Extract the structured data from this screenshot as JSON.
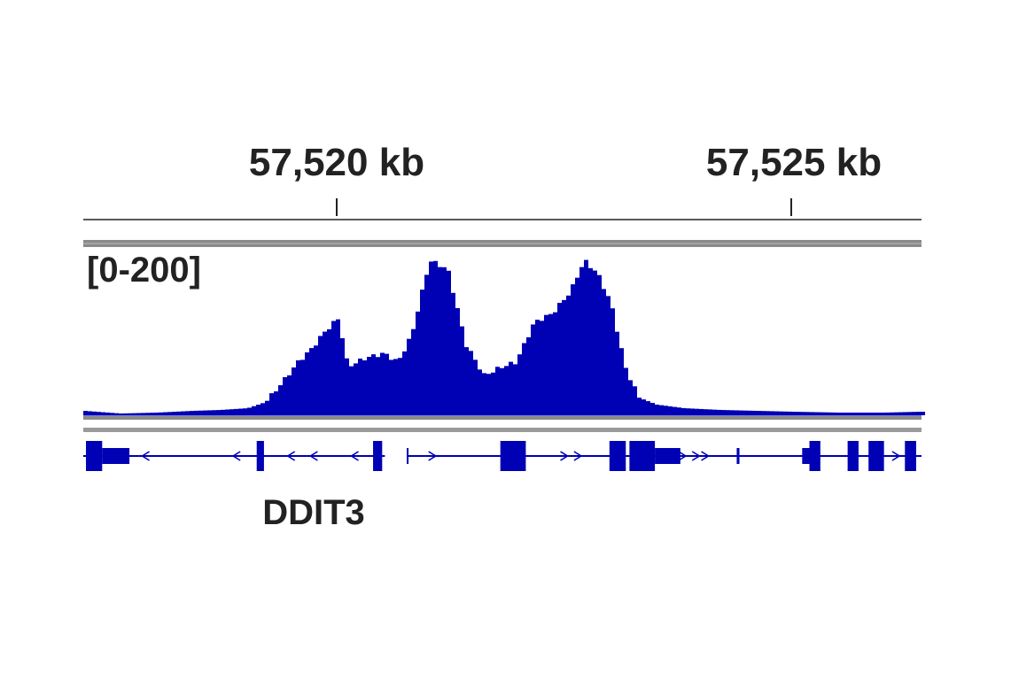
{
  "ruler": {
    "ticks": [
      {
        "label": "57,520 kb",
        "position_kb": 57520
      },
      {
        "label": "57,525 kb",
        "position_kb": 57525
      }
    ]
  },
  "track": {
    "range_label": "[0-200]"
  },
  "gene": {
    "name": "DDIT3"
  },
  "colors": {
    "signal": "#0000b4",
    "gene": "#0000b4",
    "ruler": "#222222",
    "separator": "#8a8a8a",
    "text": "#222222"
  },
  "chart_data": {
    "type": "area",
    "title": "",
    "xlabel": "",
    "ylabel": "",
    "x_unit": "kb",
    "xlim": [
      57517.2,
      57526.4
    ],
    "ylim": [
      0,
      200
    ],
    "x": [
      57517.2,
      57517.6,
      57518.0,
      57518.4,
      57518.7,
      57519.0,
      57519.2,
      57519.4,
      57519.55,
      57519.7,
      57519.85,
      57520.0,
      57520.1,
      57520.3,
      57520.5,
      57520.65,
      57520.8,
      57521.0,
      57521.2,
      57521.4,
      57521.6,
      57521.8,
      57521.95,
      57522.15,
      57522.35,
      57522.55,
      57522.7,
      57522.85,
      57523.0,
      57523.15,
      57523.3,
      57523.5,
      57523.8,
      57524.2,
      57524.6,
      57525.0,
      57525.5,
      57526.0,
      57526.4
    ],
    "values": [
      5,
      2,
      3,
      5,
      6,
      8,
      15,
      40,
      60,
      75,
      95,
      110,
      55,
      65,
      70,
      60,
      90,
      175,
      165,
      80,
      45,
      55,
      60,
      105,
      115,
      140,
      175,
      160,
      125,
      55,
      20,
      12,
      8,
      6,
      5,
      4,
      3,
      3,
      4
    ]
  },
  "gene_model": {
    "strand_arrows": [
      {
        "kb": 57517.9,
        "dir": "<"
      },
      {
        "kb": 57518.9,
        "dir": "<"
      },
      {
        "kb": 57519.5,
        "dir": "<"
      },
      {
        "kb": 57519.75,
        "dir": "<"
      },
      {
        "kb": 57520.2,
        "dir": "<"
      },
      {
        "kb": 57521.05,
        "dir": ">"
      },
      {
        "kb": 57522.5,
        "dir": ">"
      },
      {
        "kb": 57522.65,
        "dir": ">"
      },
      {
        "kb": 57523.8,
        "dir": ">"
      },
      {
        "kb": 57523.95,
        "dir": ">"
      },
      {
        "kb": 57524.05,
        "dir": ">"
      },
      {
        "kb": 57526.15,
        "dir": ">"
      }
    ],
    "thick_exons": [
      [
        57517.22,
        57517.42
      ],
      [
        57519.12,
        57519.2
      ],
      [
        57520.4,
        57520.5
      ],
      [
        57521.8,
        57522.08
      ],
      [
        57523.0,
        57523.18
      ],
      [
        57523.22,
        57523.5
      ],
      [
        57525.2,
        57525.32
      ],
      [
        57525.62,
        57525.74
      ],
      [
        57525.85,
        57526.02
      ],
      [
        57526.25,
        57527.3
      ]
    ],
    "thin_exons": [
      [
        57517.42,
        57517.72
      ],
      [
        57523.5,
        57523.78
      ],
      [
        57525.12,
        57525.2
      ],
      [
        57524.4,
        57524.43
      ]
    ],
    "gaps": [
      [
        57520.53,
        57520.78
      ]
    ]
  }
}
